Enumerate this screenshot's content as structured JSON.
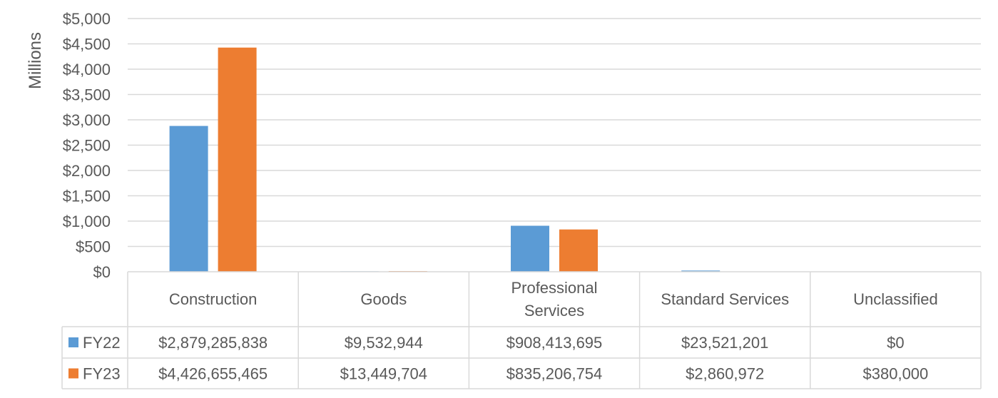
{
  "chart_data": {
    "type": "bar",
    "ylabel": "Millions",
    "ylim": [
      0,
      5000
    ],
    "yticks": [
      "$0",
      "$500",
      "$1,000",
      "$1,500",
      "$2,000",
      "$2,500",
      "$3,000",
      "$3,500",
      "$4,000",
      "$4,500",
      "$5,000"
    ],
    "categories": [
      "Construction",
      "Goods",
      "Professional Services",
      "Standard Services",
      "Unclassified"
    ],
    "grid": true,
    "legend": "data-table",
    "series": [
      {
        "name": "FY22",
        "color": "#5B9BD5",
        "values": [
          2879.285838,
          9.532944,
          908.413695,
          23.521201,
          0
        ],
        "labels": [
          "$2,879,285,838",
          "$9,532,944",
          "$908,413,695",
          "$23,521,201",
          "$0"
        ]
      },
      {
        "name": "FY23",
        "color": "#ED7D31",
        "values": [
          4426.655465,
          13.449704,
          835.206754,
          2.860972,
          0.38
        ],
        "labels": [
          "$4,426,655,465",
          "$13,449,704",
          "$835,206,754",
          "$2,860,972",
          "$380,000"
        ]
      }
    ]
  }
}
